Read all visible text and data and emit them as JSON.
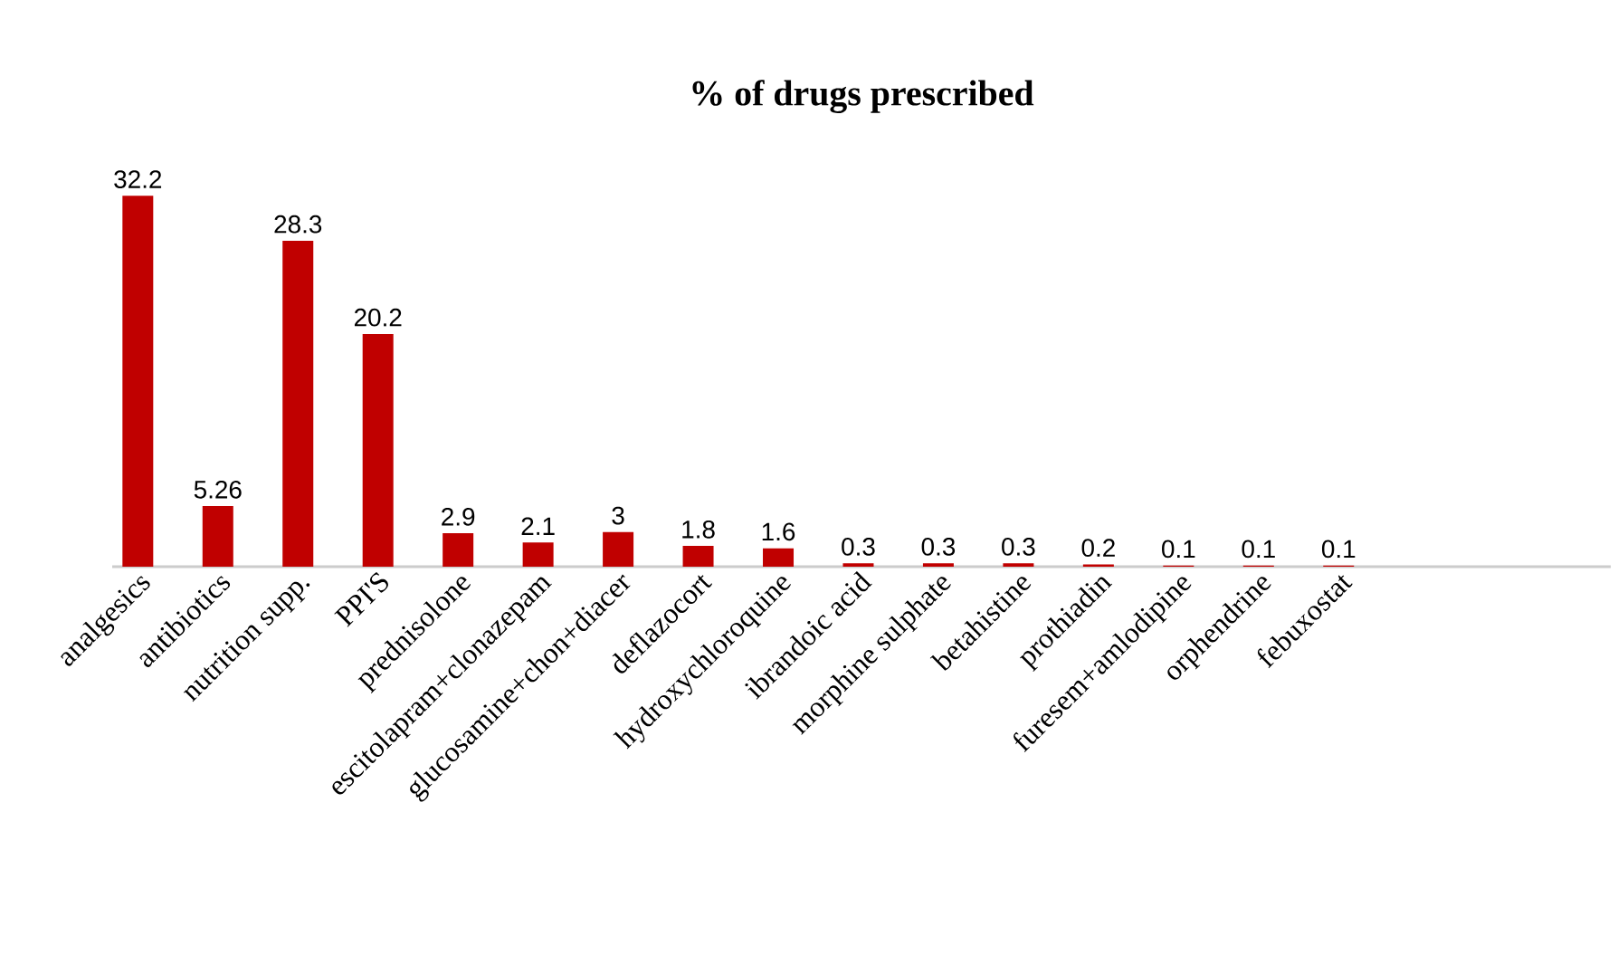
{
  "chart_data": {
    "type": "bar",
    "title": "% of drugs prescribed",
    "categories": [
      "analgesics",
      "antibiotics",
      "nutrition supp.",
      "PPI'S",
      "prednisolone",
      "escitolapram+clonazepam",
      "glucosamine+chon+diacer",
      "deflazocort",
      "hydroxychloroquine",
      "ibrandoic acid",
      "morphine sulphate",
      "betahistine",
      "prothiadin",
      "furesem+amlodipine",
      "orphendrine",
      "febuxostat"
    ],
    "values": [
      32.2,
      5.26,
      28.3,
      20.2,
      2.9,
      2.1,
      3,
      1.8,
      1.6,
      0.3,
      0.3,
      0.3,
      0.2,
      0.1,
      0.1,
      0.1
    ],
    "color": "#c00000",
    "data_labels": true
  }
}
